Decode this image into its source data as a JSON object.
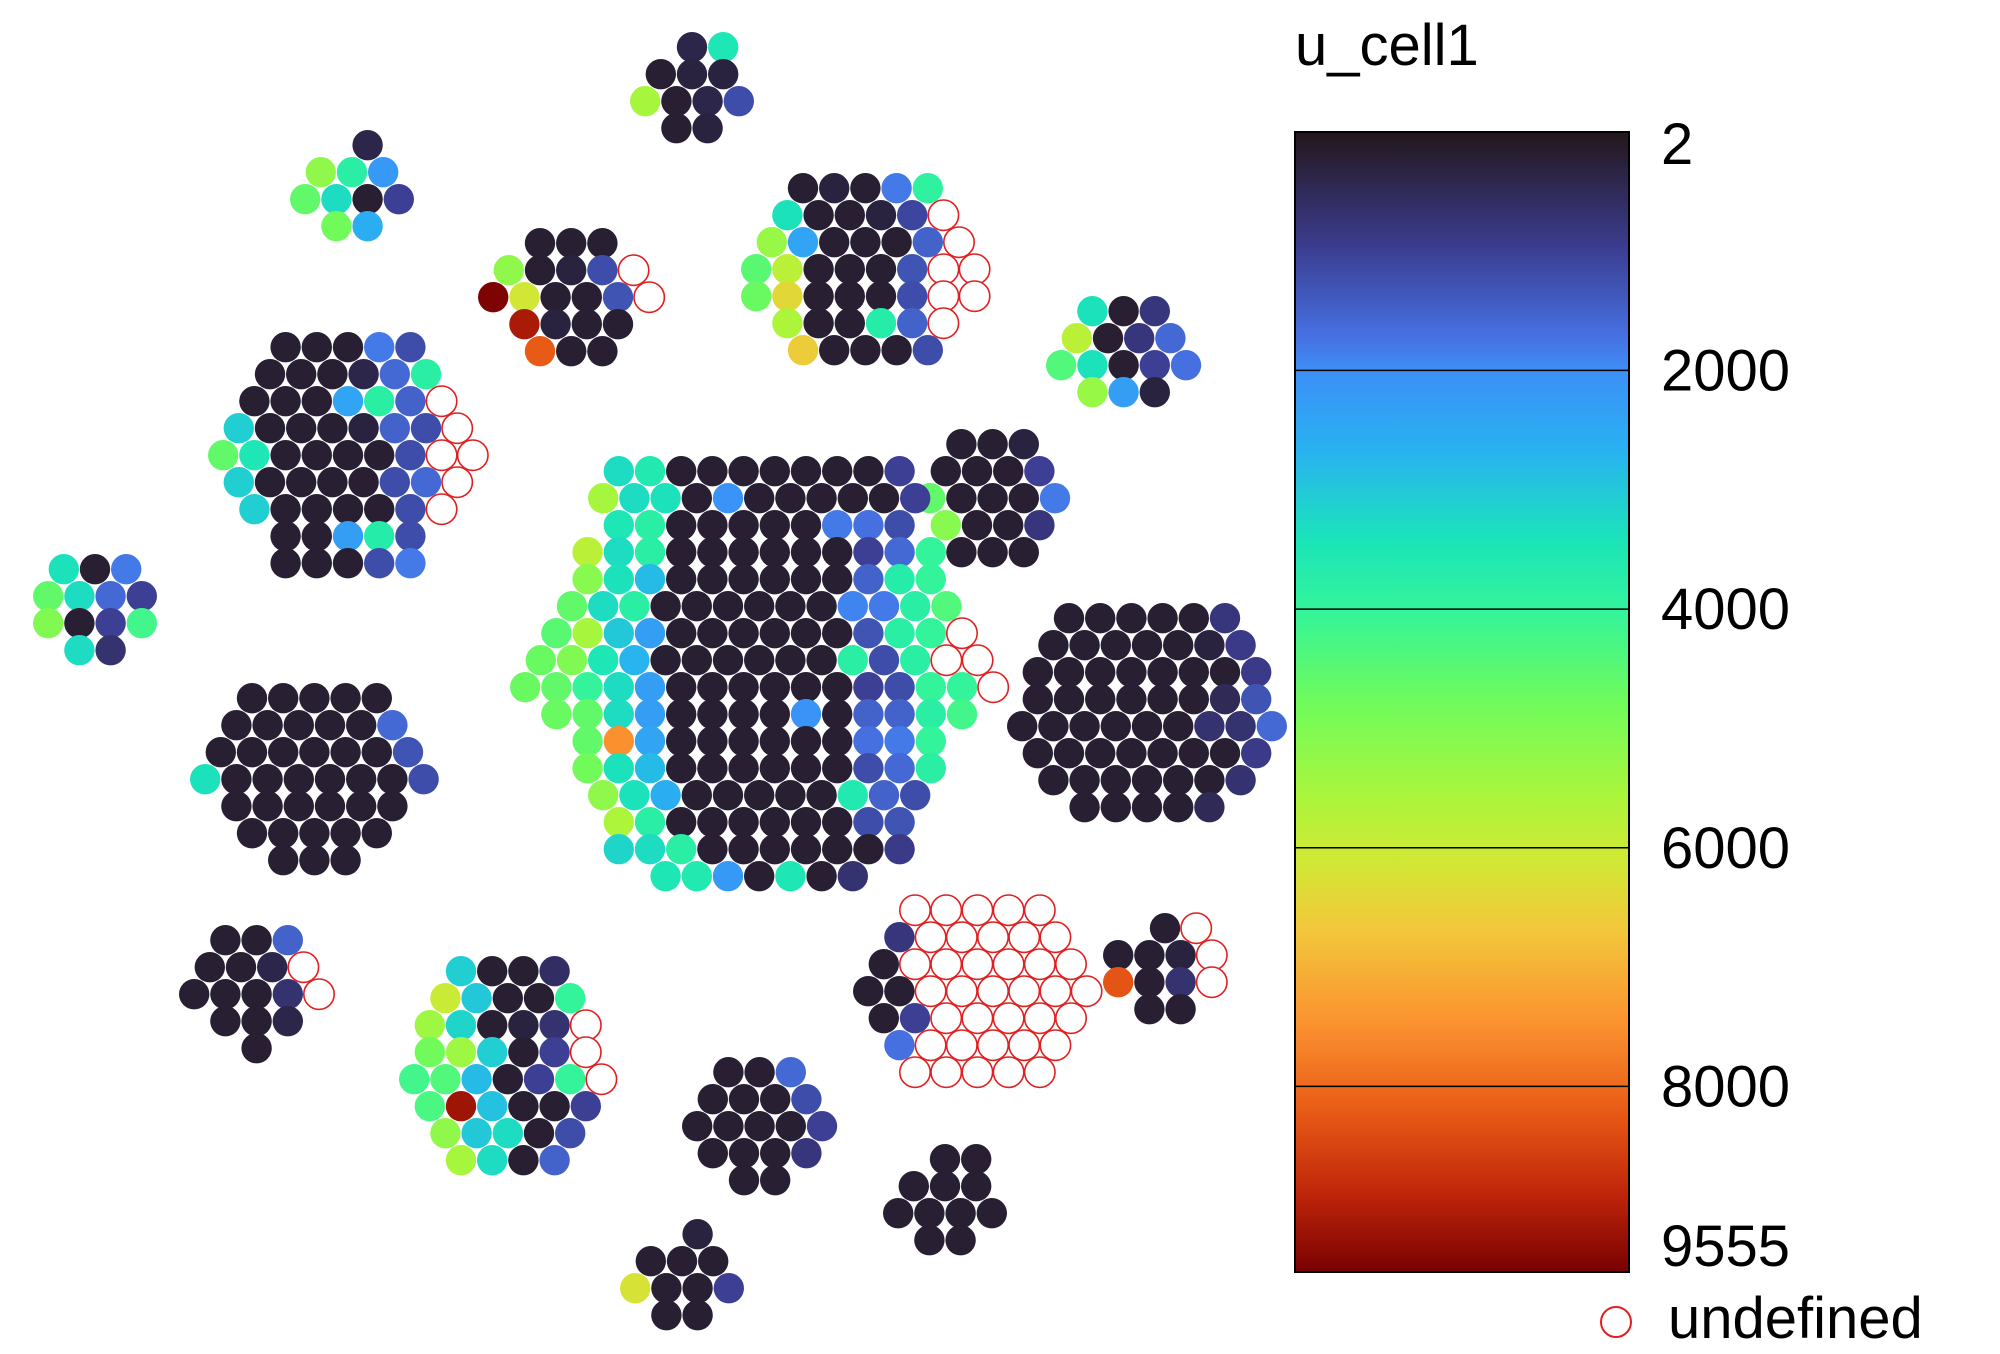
{
  "chart_data": {
    "type": "scatter",
    "title": "u_cell1",
    "colorbar": {
      "colormap": "turbo",
      "min": 2,
      "max": 9555,
      "ticks": [
        2,
        2000,
        4000,
        6000,
        8000,
        9555
      ],
      "tick_labels": [
        "2",
        "2000",
        "4000",
        "6000",
        "8000",
        "9555"
      ],
      "undefined_label": "undefined",
      "undefined_color": "#e02020"
    },
    "cell_clusters": [
      {
        "id": "top-small",
        "rows": [
          [
            null,
            400,
            3500
          ],
          [
            200,
            300,
            300
          ],
          [
            5500,
            200,
            400,
            1200
          ],
          [
            200,
            300
          ]
        ]
      },
      {
        "id": "upper-left-small",
        "rows": [
          [
            null,
            400
          ],
          [
            5200,
            3800,
            2200
          ],
          [
            4600,
            3300,
            200,
            1000
          ],
          [
            4800,
            2600
          ]
        ]
      },
      {
        "id": "upper-center-small",
        "rows": [
          [
            200,
            200,
            200
          ],
          [
            5200,
            200,
            300,
            1200,
            "undefined"
          ],
          [
            9500,
            6100,
            200,
            200,
            1300,
            "undefined"
          ],
          [
            9100,
            300,
            200,
            200
          ],
          [
            8200,
            200,
            200
          ]
        ]
      },
      {
        "id": "upper-right-medium",
        "rows": [
          [
            200,
            300,
            200,
            1800,
            3900
          ],
          [
            3400,
            200,
            200,
            300,
            1100,
            "undefined"
          ],
          [
            5300,
            2400,
            200,
            200,
            200,
            1500,
            "undefined"
          ],
          [
            4500,
            5800,
            200,
            200,
            200,
            1300,
            "undefined",
            "undefined"
          ],
          [
            4700,
            6400,
            200,
            200,
            200,
            1200,
            "undefined",
            "undefined"
          ],
          [
            5600,
            200,
            200,
            3700,
            1500,
            "undefined"
          ],
          [
            6600,
            200,
            200,
            200,
            1200
          ]
        ]
      },
      {
        "id": "right-small-upper",
        "rows": [
          [
            3400,
            200,
            800
          ],
          [
            5800,
            200,
            800,
            1600
          ],
          [
            4400,
            3400,
            200,
            1000,
            1700
          ],
          [
            5300,
            2300,
            300
          ]
        ]
      },
      {
        "id": "left-medium",
        "rows": [
          [
            200,
            200,
            200,
            1800,
            1200
          ],
          [
            200,
            200,
            200,
            400,
            1600,
            3800
          ],
          [
            200,
            200,
            200,
            2400,
            3800,
            1500,
            "undefined"
          ],
          [
            3100,
            200,
            200,
            200,
            300,
            1500,
            1200,
            "undefined"
          ],
          [
            4600,
            3500,
            200,
            200,
            200,
            200,
            1200,
            "undefined",
            "undefined"
          ],
          [
            3100,
            200,
            200,
            200,
            200,
            1200,
            1600,
            "undefined"
          ],
          [
            3100,
            200,
            200,
            200,
            200,
            1200,
            "undefined"
          ],
          [
            200,
            200,
            2300,
            3700,
            1200
          ],
          [
            200,
            200,
            200,
            1200,
            1800
          ]
        ]
      },
      {
        "id": "left-tiny",
        "rows": [
          [
            3400,
            200,
            1800
          ],
          [
            4600,
            3300,
            1600,
            1000
          ],
          [
            5000,
            200,
            1000,
            4200
          ],
          [
            3300,
            700
          ]
        ]
      },
      {
        "id": "right-small-mid",
        "rows": [
          [
            200,
            200,
            300
          ],
          [
            200,
            200,
            200,
            1000
          ],
          [
            4600,
            200,
            200,
            200,
            1800
          ],
          [
            5100,
            200,
            200,
            800
          ],
          [
            200,
            200,
            200
          ]
        ]
      },
      {
        "id": "center-large",
        "rows": [
          [
            3300,
            3600,
            200,
            200,
            200,
            200,
            200,
            200,
            200,
            1000
          ],
          [
            5500,
            3300,
            3400,
            200,
            2100,
            200,
            200,
            200,
            200,
            200,
            1000
          ],
          [
            3500,
            3800,
            200,
            200,
            200,
            200,
            200,
            1800,
            1700,
            1200
          ],
          [
            5800,
            3300,
            3800,
            200,
            200,
            200,
            200,
            200,
            200,
            1000,
            1600,
            4000
          ],
          [
            5100,
            3400,
            2800,
            200,
            200,
            200,
            200,
            200,
            200,
            1500,
            3700,
            4000
          ],
          [
            4600,
            3300,
            3800,
            200,
            200,
            200,
            200,
            200,
            200,
            1900,
            1800,
            3800,
            4400
          ],
          [
            4500,
            5500,
            3000,
            2300,
            200,
            200,
            200,
            200,
            200,
            200,
            1300,
            3800,
            4000,
            "undefined"
          ],
          [
            4700,
            5000,
            3500,
            2700,
            200,
            200,
            200,
            200,
            200,
            200,
            3800,
            1200,
            3800,
            "undefined",
            "undefined"
          ],
          [
            4700,
            4600,
            4000,
            3300,
            2300,
            200,
            200,
            200,
            200,
            200,
            200,
            1000,
            1200,
            4000,
            4000,
            "undefined"
          ],
          [
            4700,
            4600,
            3300,
            2300,
            200,
            200,
            200,
            200,
            2100,
            200,
            1500,
            1500,
            3800,
            4200
          ],
          [
            4600,
            7500,
            2400,
            200,
            200,
            200,
            200,
            200,
            200,
            1700,
            1800,
            4000
          ],
          [
            4800,
            3400,
            2800,
            200,
            200,
            200,
            200,
            200,
            200,
            1200,
            1600,
            3800
          ],
          [
            5200,
            3400,
            2600,
            200,
            200,
            200,
            200,
            200,
            3600,
            1500,
            1200
          ],
          [
            5600,
            3800,
            200,
            200,
            200,
            200,
            200,
            200,
            1200,
            1300
          ],
          [
            3200,
            3300,
            3800,
            200,
            200,
            200,
            200,
            200,
            200,
            900
          ],
          [
            3500,
            3600,
            2200,
            200,
            3500,
            200,
            700
          ]
        ]
      },
      {
        "id": "right-medium",
        "rows": [
          [
            200,
            200,
            200,
            200,
            200,
            800
          ],
          [
            200,
            200,
            200,
            200,
            200,
            300,
            900
          ],
          [
            200,
            200,
            200,
            200,
            200,
            200,
            200,
            900
          ],
          [
            200,
            200,
            200,
            200,
            200,
            200,
            500,
            1300
          ],
          [
            200,
            200,
            200,
            200,
            200,
            200,
            700,
            700,
            1600
          ],
          [
            200,
            200,
            200,
            200,
            200,
            200,
            200,
            900
          ],
          [
            200,
            200,
            200,
            200,
            200,
            200,
            700
          ],
          [
            200,
            200,
            200,
            200,
            500
          ]
        ]
      },
      {
        "id": "left-medium-lower",
        "rows": [
          [
            200,
            200,
            200,
            200,
            200
          ],
          [
            200,
            200,
            200,
            200,
            200,
            1600
          ],
          [
            200,
            200,
            200,
            200,
            200,
            200,
            1300
          ],
          [
            3400,
            200,
            200,
            200,
            200,
            200,
            200,
            1200
          ],
          [
            200,
            200,
            200,
            200,
            200,
            200
          ],
          [
            200,
            200,
            200,
            200,
            200
          ],
          [
            200,
            200,
            200
          ]
        ]
      },
      {
        "id": "lower-left-small",
        "rows": [
          [
            200,
            200,
            1500
          ],
          [
            200,
            200,
            400,
            "undefined"
          ],
          [
            200,
            200,
            200,
            700,
            "undefined"
          ],
          [
            200,
            200,
            400
          ],
          [
            200
          ]
        ]
      },
      {
        "id": "lower-left-medium",
        "rows": [
          [
            3100,
            200,
            200,
            600
          ],
          [
            6000,
            3000,
            200,
            200,
            4000
          ],
          [
            5400,
            3200,
            200,
            300,
            700,
            "undefined"
          ],
          [
            4800,
            5400,
            3100,
            200,
            1000,
            "undefined"
          ],
          [
            4200,
            4400,
            2800,
            200,
            1000,
            4000,
            "undefined"
          ],
          [
            4300,
            9200,
            2900,
            200,
            200,
            1000
          ],
          [
            5200,
            3000,
            3300,
            200,
            1200
          ],
          [
            5500,
            3300,
            200,
            1500
          ]
        ]
      },
      {
        "id": "lower-center-small",
        "rows": [
          [
            200,
            200,
            1600
          ],
          [
            200,
            200,
            200,
            1200
          ],
          [
            200,
            200,
            200,
            200,
            1000
          ],
          [
            200,
            200,
            200,
            800
          ],
          [
            200,
            200
          ]
        ]
      },
      {
        "id": "lower-right-medium",
        "rows": [
          [
            "undefined",
            "undefined",
            "undefined",
            "undefined",
            "undefined"
          ],
          [
            800,
            "undefined",
            "undefined",
            "undefined",
            "undefined",
            "undefined"
          ],
          [
            200,
            "undefined",
            "undefined",
            "undefined",
            "undefined",
            "undefined",
            "undefined"
          ],
          [
            200,
            200,
            "undefined",
            "undefined",
            "undefined",
            "undefined",
            "undefined",
            "undefined"
          ],
          [
            200,
            1000,
            "undefined",
            "undefined",
            "undefined",
            "undefined",
            "undefined"
          ],
          [
            1700,
            "undefined",
            "undefined",
            "undefined",
            "undefined",
            "undefined"
          ],
          [
            "undefined",
            "undefined",
            "undefined",
            "undefined",
            "undefined"
          ]
        ]
      },
      {
        "id": "right-tiny-lower",
        "rows": [
          [
            null,
            200,
            "undefined"
          ],
          [
            200,
            200,
            300,
            "undefined"
          ],
          [
            8300,
            200,
            700,
            "undefined"
          ],
          [
            200,
            200
          ]
        ]
      },
      {
        "id": "bottom-center-small",
        "rows": [
          [
            null,
            200,
            200
          ],
          [
            200,
            200,
            200
          ],
          [
            200,
            200,
            200,
            200
          ],
          [
            200,
            200
          ]
        ]
      },
      {
        "id": "bottom-small",
        "rows": [
          [
            null,
            300
          ],
          [
            200,
            200,
            200
          ],
          [
            6200,
            200,
            200,
            1000
          ],
          [
            200,
            200
          ]
        ]
      }
    ]
  }
}
